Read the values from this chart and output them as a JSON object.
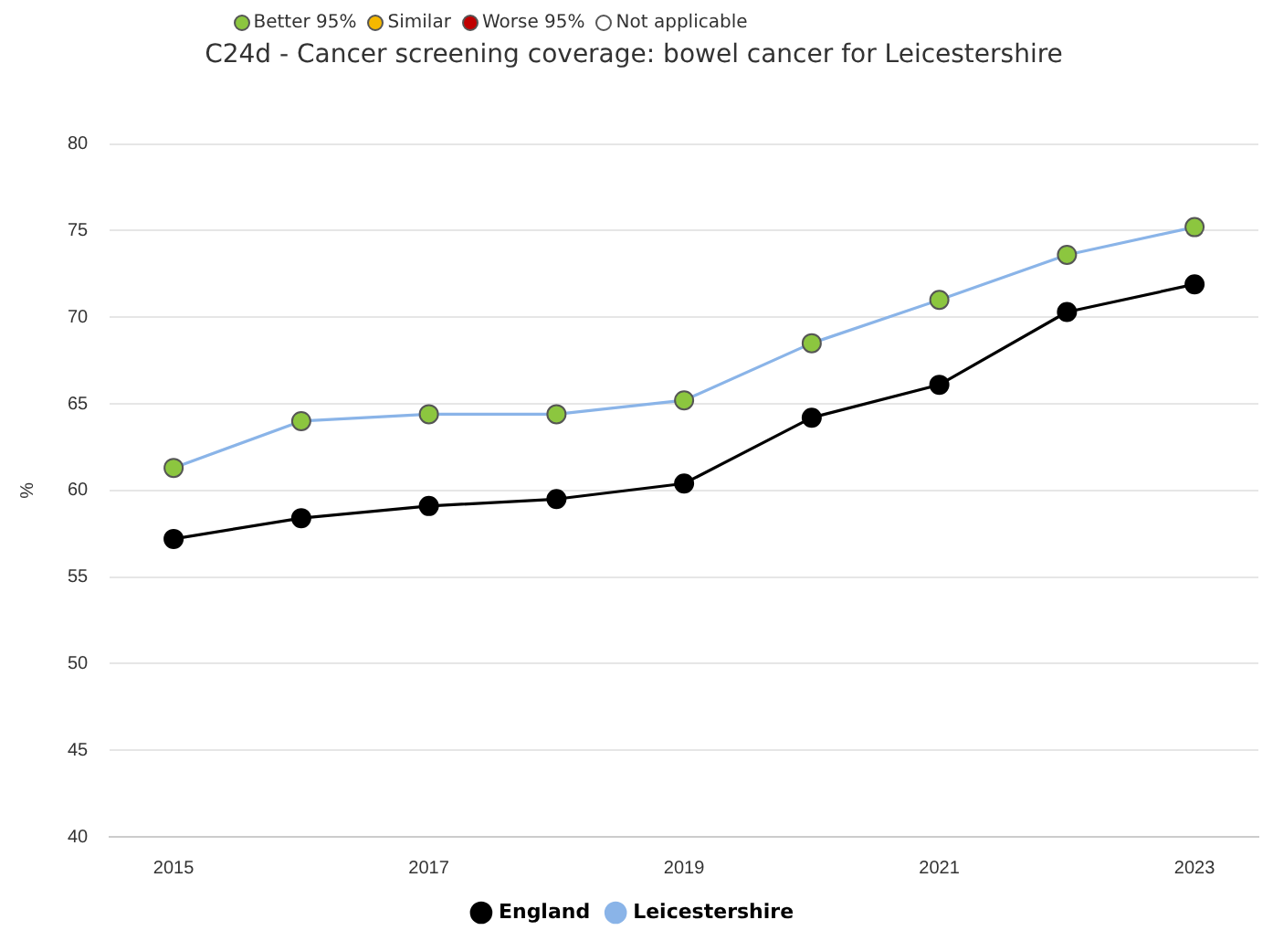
{
  "chart_data": {
    "type": "line",
    "title": "C24d - Cancer screening coverage: bowel cancer for Leicestershire",
    "ylabel": "%",
    "annotations": [
      "Better 95%",
      "Similar",
      "Worse 95%",
      "Not applicable"
    ],
    "x": [
      2015,
      2016,
      2017,
      2018,
      2019,
      2020,
      2021,
      2022,
      2023
    ],
    "xlim": [
      2014.5,
      2023.5
    ],
    "xticks": [
      2015,
      2017,
      2019,
      2021,
      2023
    ],
    "ylim": [
      40,
      80
    ],
    "yticks": [
      40,
      45,
      50,
      55,
      60,
      65,
      70,
      75,
      80
    ],
    "series": [
      {
        "name": "England",
        "color": "#000000",
        "values": [
          57.2,
          58.4,
          59.1,
          59.5,
          60.4,
          64.2,
          66.1,
          70.3,
          71.9
        ]
      },
      {
        "name": "Leicestershire",
        "color": "#8ab4e8",
        "colors": [
          "#8cc63f",
          "#8cc63f",
          "#8cc63f",
          "#8cc63f",
          "#8cc63f",
          "#8cc63f",
          "#8cc63f",
          "#8cc63f",
          "#8cc63f"
        ],
        "values": [
          61.3,
          64.0,
          64.4,
          64.4,
          65.2,
          68.5,
          71.0,
          73.6,
          75.2
        ]
      }
    ],
    "grid": "y",
    "legend": "bottom",
    "marker": "circle",
    "line_style": "solid"
  }
}
